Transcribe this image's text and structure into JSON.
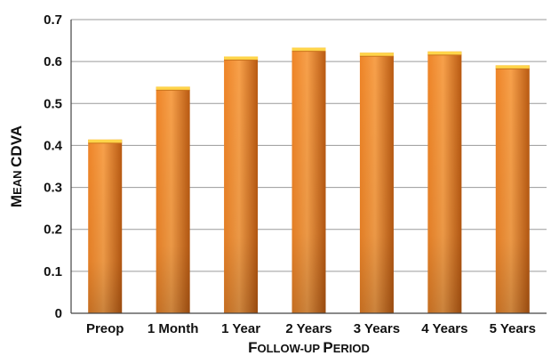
{
  "chart_data": {
    "type": "bar",
    "categories": [
      "Preop",
      "1 Month",
      "1 Year",
      "2 Years",
      "3 Years",
      "4 Years",
      "5 Years"
    ],
    "values": [
      0.414,
      0.54,
      0.612,
      0.633,
      0.621,
      0.624,
      0.591
    ],
    "title": "",
    "xlabel": "Follow-up Period",
    "ylabel": "Mean CDVA",
    "ylim": [
      0,
      0.7
    ],
    "yticks": [
      "0",
      "0.1",
      "0.2",
      "0.3",
      "0.4",
      "0.5",
      "0.6",
      "0.7"
    ],
    "grid": true,
    "legend": "none",
    "colors": {
      "bar_light": "#f7a04a",
      "bar_mid": "#ee8427",
      "bar_dark": "#b95a12",
      "bar_top": "#ffd54a",
      "grid": "#9a9a9a",
      "axis": "#444444"
    }
  }
}
